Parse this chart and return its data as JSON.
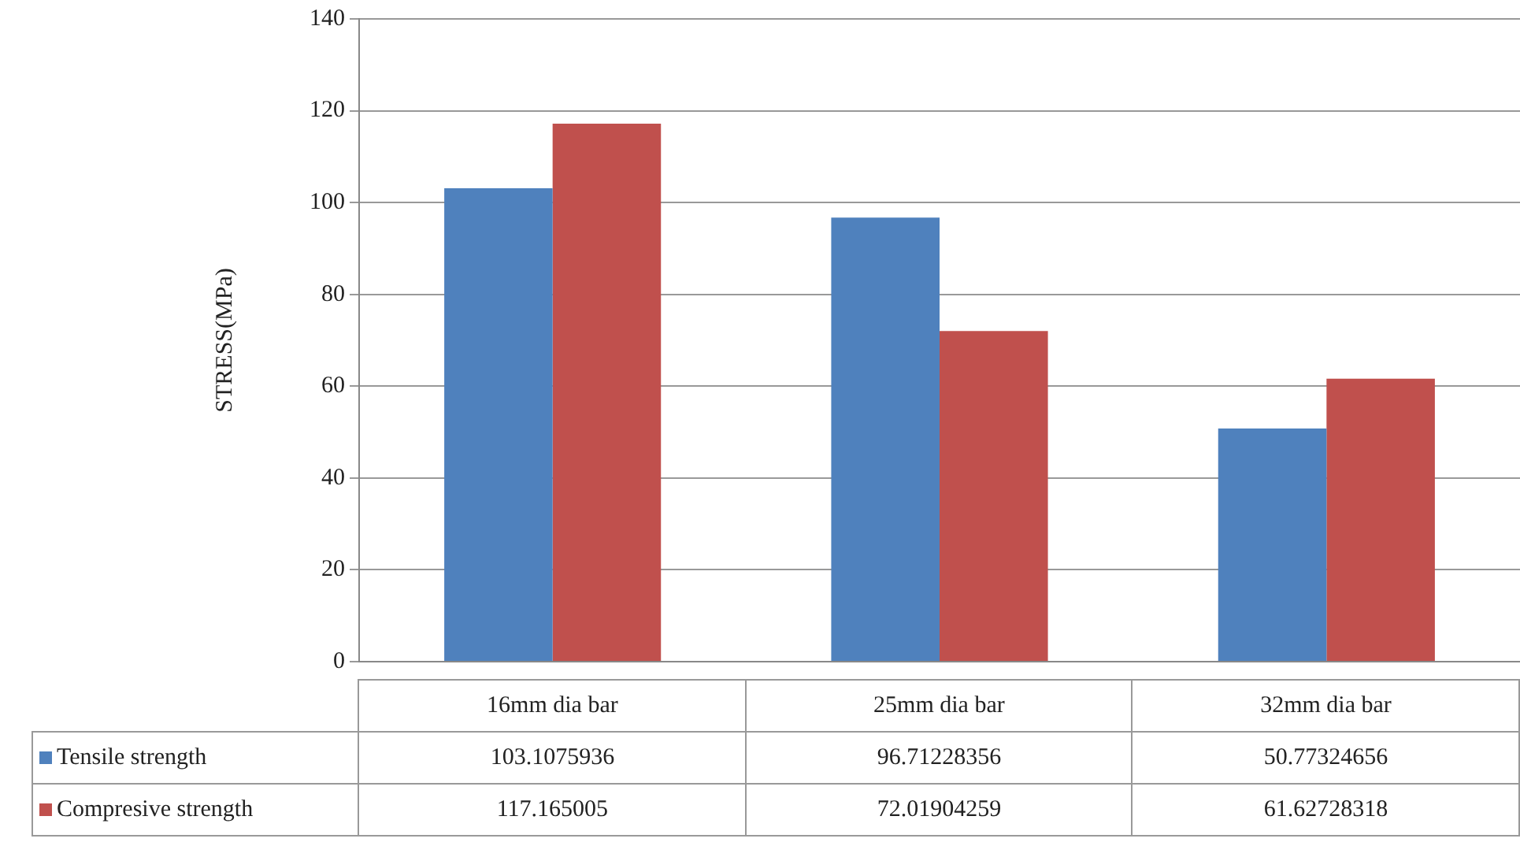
{
  "chart_data": {
    "type": "bar",
    "ylabel": "STRESS(MPa)",
    "categories": [
      "16mm dia bar",
      "25mm dia bar",
      "32mm dia bar"
    ],
    "series": [
      {
        "name": "Tensile strength",
        "color": "#4f81bd",
        "values": [
          103.1075936,
          96.71228356,
          50.77324656
        ]
      },
      {
        "name": "Compresive strength",
        "color": "#c0504d",
        "values": [
          117.165005,
          72.01904259,
          61.62728318
        ]
      }
    ],
    "ylim": [
      0,
      140
    ],
    "yticks": [
      0,
      20,
      40,
      60,
      80,
      100,
      120,
      140
    ],
    "grid": "y",
    "legend": "bottom left",
    "data_labels": true
  }
}
